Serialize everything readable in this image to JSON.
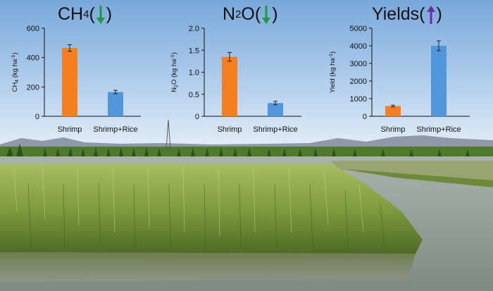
{
  "scene": {
    "sky_top": "#7fb0de",
    "sky_bottom": "#e3eef8",
    "field_color": "#5b7d2c",
    "rice_color": "#8aa849",
    "water_color": "#8e9a93"
  },
  "chart_data": [
    {
      "type": "bar",
      "title_main": "CH",
      "title_sub": "4",
      "title_open": "(",
      "title_close": ")",
      "indicator": "down-arrow",
      "indicator_color": "#1f9a3a",
      "ylabel_main": "CH",
      "ylabel_sub": "4",
      "ylabel_unit": " (kg ha",
      "ylabel_exp": "-1",
      "ylabel_close": ")",
      "categories": [
        "Shrimp",
        "Shrimp+Rice"
      ],
      "values": [
        465,
        165
      ],
      "errors": [
        22,
        12
      ],
      "colors": [
        "#f47f1f",
        "#4f97d8"
      ],
      "ylim": [
        0,
        600
      ],
      "yticks": [
        "0",
        "200",
        "400",
        "600"
      ]
    },
    {
      "type": "bar",
      "title_main": "N",
      "title_sub": "2",
      "title_post": "O",
      "title_open": "(",
      "title_close": ")",
      "indicator": "down-arrow",
      "indicator_color": "#1f9a3a",
      "ylabel_main": "N",
      "ylabel_sub": "2",
      "ylabel_post": "O",
      "ylabel_unit": " (kg ha",
      "ylabel_exp": "-1",
      "ylabel_close": ")",
      "categories": [
        "Shrimp",
        "Shrimp+Rice"
      ],
      "values": [
        1.35,
        0.3
      ],
      "errors": [
        0.1,
        0.04
      ],
      "colors": [
        "#f47f1f",
        "#4f97d8"
      ],
      "ylim": [
        0,
        2.0
      ],
      "yticks": [
        "0",
        "0.5",
        "1.0",
        "1.5",
        "2.0"
      ]
    },
    {
      "type": "bar",
      "title_main": "Yields",
      "title_open": "(",
      "title_close": ")",
      "indicator": "up-arrow",
      "indicator_color": "#6a2ca0",
      "ylabel_main": "Yield",
      "ylabel_unit": " (kg ha",
      "ylabel_exp": "-1",
      "ylabel_close": ")",
      "categories": [
        "Shrimp",
        "Shrimp+Rice"
      ],
      "values": [
        580,
        4000
      ],
      "errors": [
        50,
        280
      ],
      "colors": [
        "#f47f1f",
        "#4f97d8"
      ],
      "ylim": [
        0,
        5000
      ],
      "yticks": [
        "0",
        "1000",
        "2000",
        "3000",
        "4000",
        "5000"
      ]
    }
  ]
}
